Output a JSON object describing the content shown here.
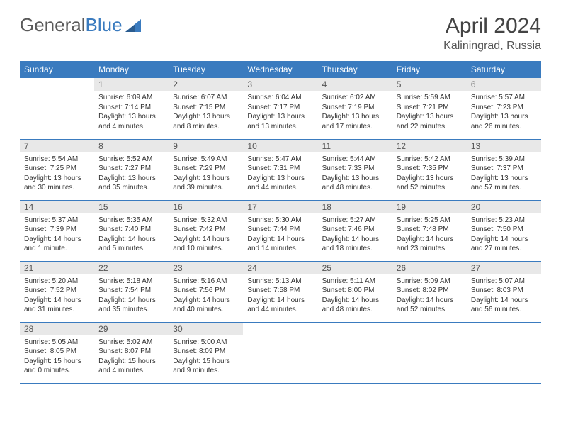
{
  "logo": {
    "part1": "General",
    "part2": "Blue"
  },
  "title": "April 2024",
  "location": "Kaliningrad, Russia",
  "colors": {
    "header_bg": "#3a7bbf",
    "header_text": "#ffffff",
    "daynum_bg": "#e8e8e8",
    "border": "#3a7bbf",
    "body_text": "#333333",
    "logo_gray": "#5a5a5a",
    "logo_blue": "#3a7bbf"
  },
  "typography": {
    "title_fontsize": 30,
    "location_fontsize": 16,
    "header_fontsize": 12,
    "cell_fontsize": 10
  },
  "day_headers": [
    "Sunday",
    "Monday",
    "Tuesday",
    "Wednesday",
    "Thursday",
    "Friday",
    "Saturday"
  ],
  "weeks": [
    [
      null,
      {
        "n": "1",
        "sr": "Sunrise: 6:09 AM",
        "ss": "Sunset: 7:14 PM",
        "d1": "Daylight: 13 hours",
        "d2": "and 4 minutes."
      },
      {
        "n": "2",
        "sr": "Sunrise: 6:07 AM",
        "ss": "Sunset: 7:15 PM",
        "d1": "Daylight: 13 hours",
        "d2": "and 8 minutes."
      },
      {
        "n": "3",
        "sr": "Sunrise: 6:04 AM",
        "ss": "Sunset: 7:17 PM",
        "d1": "Daylight: 13 hours",
        "d2": "and 13 minutes."
      },
      {
        "n": "4",
        "sr": "Sunrise: 6:02 AM",
        "ss": "Sunset: 7:19 PM",
        "d1": "Daylight: 13 hours",
        "d2": "and 17 minutes."
      },
      {
        "n": "5",
        "sr": "Sunrise: 5:59 AM",
        "ss": "Sunset: 7:21 PM",
        "d1": "Daylight: 13 hours",
        "d2": "and 22 minutes."
      },
      {
        "n": "6",
        "sr": "Sunrise: 5:57 AM",
        "ss": "Sunset: 7:23 PM",
        "d1": "Daylight: 13 hours",
        "d2": "and 26 minutes."
      }
    ],
    [
      {
        "n": "7",
        "sr": "Sunrise: 5:54 AM",
        "ss": "Sunset: 7:25 PM",
        "d1": "Daylight: 13 hours",
        "d2": "and 30 minutes."
      },
      {
        "n": "8",
        "sr": "Sunrise: 5:52 AM",
        "ss": "Sunset: 7:27 PM",
        "d1": "Daylight: 13 hours",
        "d2": "and 35 minutes."
      },
      {
        "n": "9",
        "sr": "Sunrise: 5:49 AM",
        "ss": "Sunset: 7:29 PM",
        "d1": "Daylight: 13 hours",
        "d2": "and 39 minutes."
      },
      {
        "n": "10",
        "sr": "Sunrise: 5:47 AM",
        "ss": "Sunset: 7:31 PM",
        "d1": "Daylight: 13 hours",
        "d2": "and 44 minutes."
      },
      {
        "n": "11",
        "sr": "Sunrise: 5:44 AM",
        "ss": "Sunset: 7:33 PM",
        "d1": "Daylight: 13 hours",
        "d2": "and 48 minutes."
      },
      {
        "n": "12",
        "sr": "Sunrise: 5:42 AM",
        "ss": "Sunset: 7:35 PM",
        "d1": "Daylight: 13 hours",
        "d2": "and 52 minutes."
      },
      {
        "n": "13",
        "sr": "Sunrise: 5:39 AM",
        "ss": "Sunset: 7:37 PM",
        "d1": "Daylight: 13 hours",
        "d2": "and 57 minutes."
      }
    ],
    [
      {
        "n": "14",
        "sr": "Sunrise: 5:37 AM",
        "ss": "Sunset: 7:39 PM",
        "d1": "Daylight: 14 hours",
        "d2": "and 1 minute."
      },
      {
        "n": "15",
        "sr": "Sunrise: 5:35 AM",
        "ss": "Sunset: 7:40 PM",
        "d1": "Daylight: 14 hours",
        "d2": "and 5 minutes."
      },
      {
        "n": "16",
        "sr": "Sunrise: 5:32 AM",
        "ss": "Sunset: 7:42 PM",
        "d1": "Daylight: 14 hours",
        "d2": "and 10 minutes."
      },
      {
        "n": "17",
        "sr": "Sunrise: 5:30 AM",
        "ss": "Sunset: 7:44 PM",
        "d1": "Daylight: 14 hours",
        "d2": "and 14 minutes."
      },
      {
        "n": "18",
        "sr": "Sunrise: 5:27 AM",
        "ss": "Sunset: 7:46 PM",
        "d1": "Daylight: 14 hours",
        "d2": "and 18 minutes."
      },
      {
        "n": "19",
        "sr": "Sunrise: 5:25 AM",
        "ss": "Sunset: 7:48 PM",
        "d1": "Daylight: 14 hours",
        "d2": "and 23 minutes."
      },
      {
        "n": "20",
        "sr": "Sunrise: 5:23 AM",
        "ss": "Sunset: 7:50 PM",
        "d1": "Daylight: 14 hours",
        "d2": "and 27 minutes."
      }
    ],
    [
      {
        "n": "21",
        "sr": "Sunrise: 5:20 AM",
        "ss": "Sunset: 7:52 PM",
        "d1": "Daylight: 14 hours",
        "d2": "and 31 minutes."
      },
      {
        "n": "22",
        "sr": "Sunrise: 5:18 AM",
        "ss": "Sunset: 7:54 PM",
        "d1": "Daylight: 14 hours",
        "d2": "and 35 minutes."
      },
      {
        "n": "23",
        "sr": "Sunrise: 5:16 AM",
        "ss": "Sunset: 7:56 PM",
        "d1": "Daylight: 14 hours",
        "d2": "and 40 minutes."
      },
      {
        "n": "24",
        "sr": "Sunrise: 5:13 AM",
        "ss": "Sunset: 7:58 PM",
        "d1": "Daylight: 14 hours",
        "d2": "and 44 minutes."
      },
      {
        "n": "25",
        "sr": "Sunrise: 5:11 AM",
        "ss": "Sunset: 8:00 PM",
        "d1": "Daylight: 14 hours",
        "d2": "and 48 minutes."
      },
      {
        "n": "26",
        "sr": "Sunrise: 5:09 AM",
        "ss": "Sunset: 8:02 PM",
        "d1": "Daylight: 14 hours",
        "d2": "and 52 minutes."
      },
      {
        "n": "27",
        "sr": "Sunrise: 5:07 AM",
        "ss": "Sunset: 8:03 PM",
        "d1": "Daylight: 14 hours",
        "d2": "and 56 minutes."
      }
    ],
    [
      {
        "n": "28",
        "sr": "Sunrise: 5:05 AM",
        "ss": "Sunset: 8:05 PM",
        "d1": "Daylight: 15 hours",
        "d2": "and 0 minutes."
      },
      {
        "n": "29",
        "sr": "Sunrise: 5:02 AM",
        "ss": "Sunset: 8:07 PM",
        "d1": "Daylight: 15 hours",
        "d2": "and 4 minutes."
      },
      {
        "n": "30",
        "sr": "Sunrise: 5:00 AM",
        "ss": "Sunset: 8:09 PM",
        "d1": "Daylight: 15 hours",
        "d2": "and 9 minutes."
      },
      null,
      null,
      null,
      null
    ]
  ]
}
